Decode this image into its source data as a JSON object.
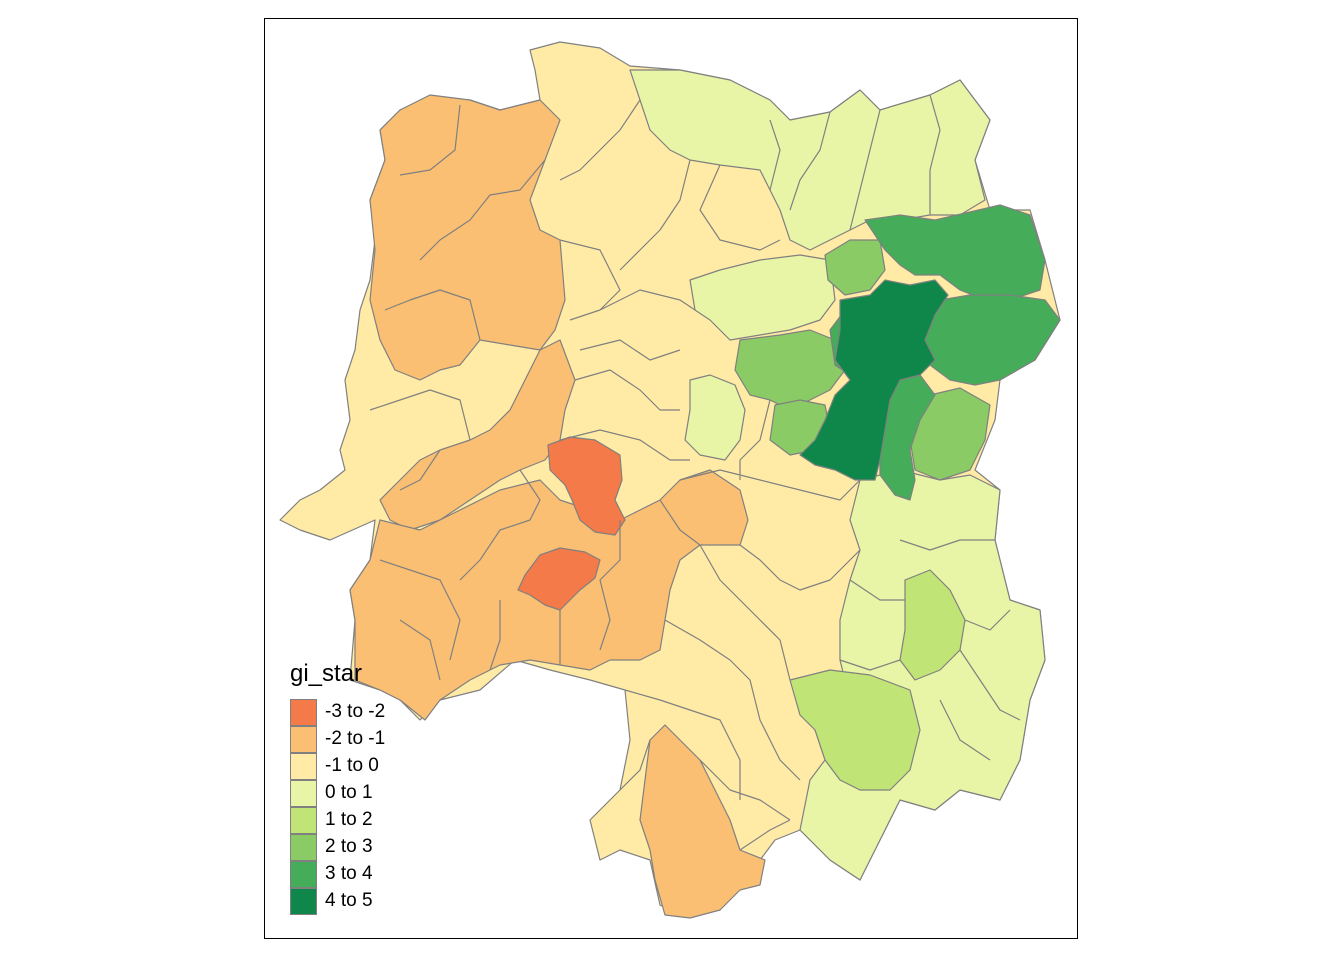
{
  "legend": {
    "title": "gi_star",
    "items": [
      {
        "label": "-3 to -2",
        "color": "#F47A4A"
      },
      {
        "label": "-2 to -1",
        "color": "#FABF72"
      },
      {
        "label": "-1 to 0",
        "color": "#FFEBA6"
      },
      {
        "label": "0 to 1",
        "color": "#E9F5A6"
      },
      {
        "label": "1 to 2",
        "color": "#C0E475"
      },
      {
        "label": "2 to 3",
        "color": "#8ACB65"
      },
      {
        "label": "3 to 4",
        "color": "#45AC5A"
      },
      {
        "label": "4 to 5",
        "color": "#10874A"
      }
    ]
  },
  "colors": {
    "frame": "#000000",
    "boundary": "#808080",
    "background": "#FFFFFF"
  }
}
